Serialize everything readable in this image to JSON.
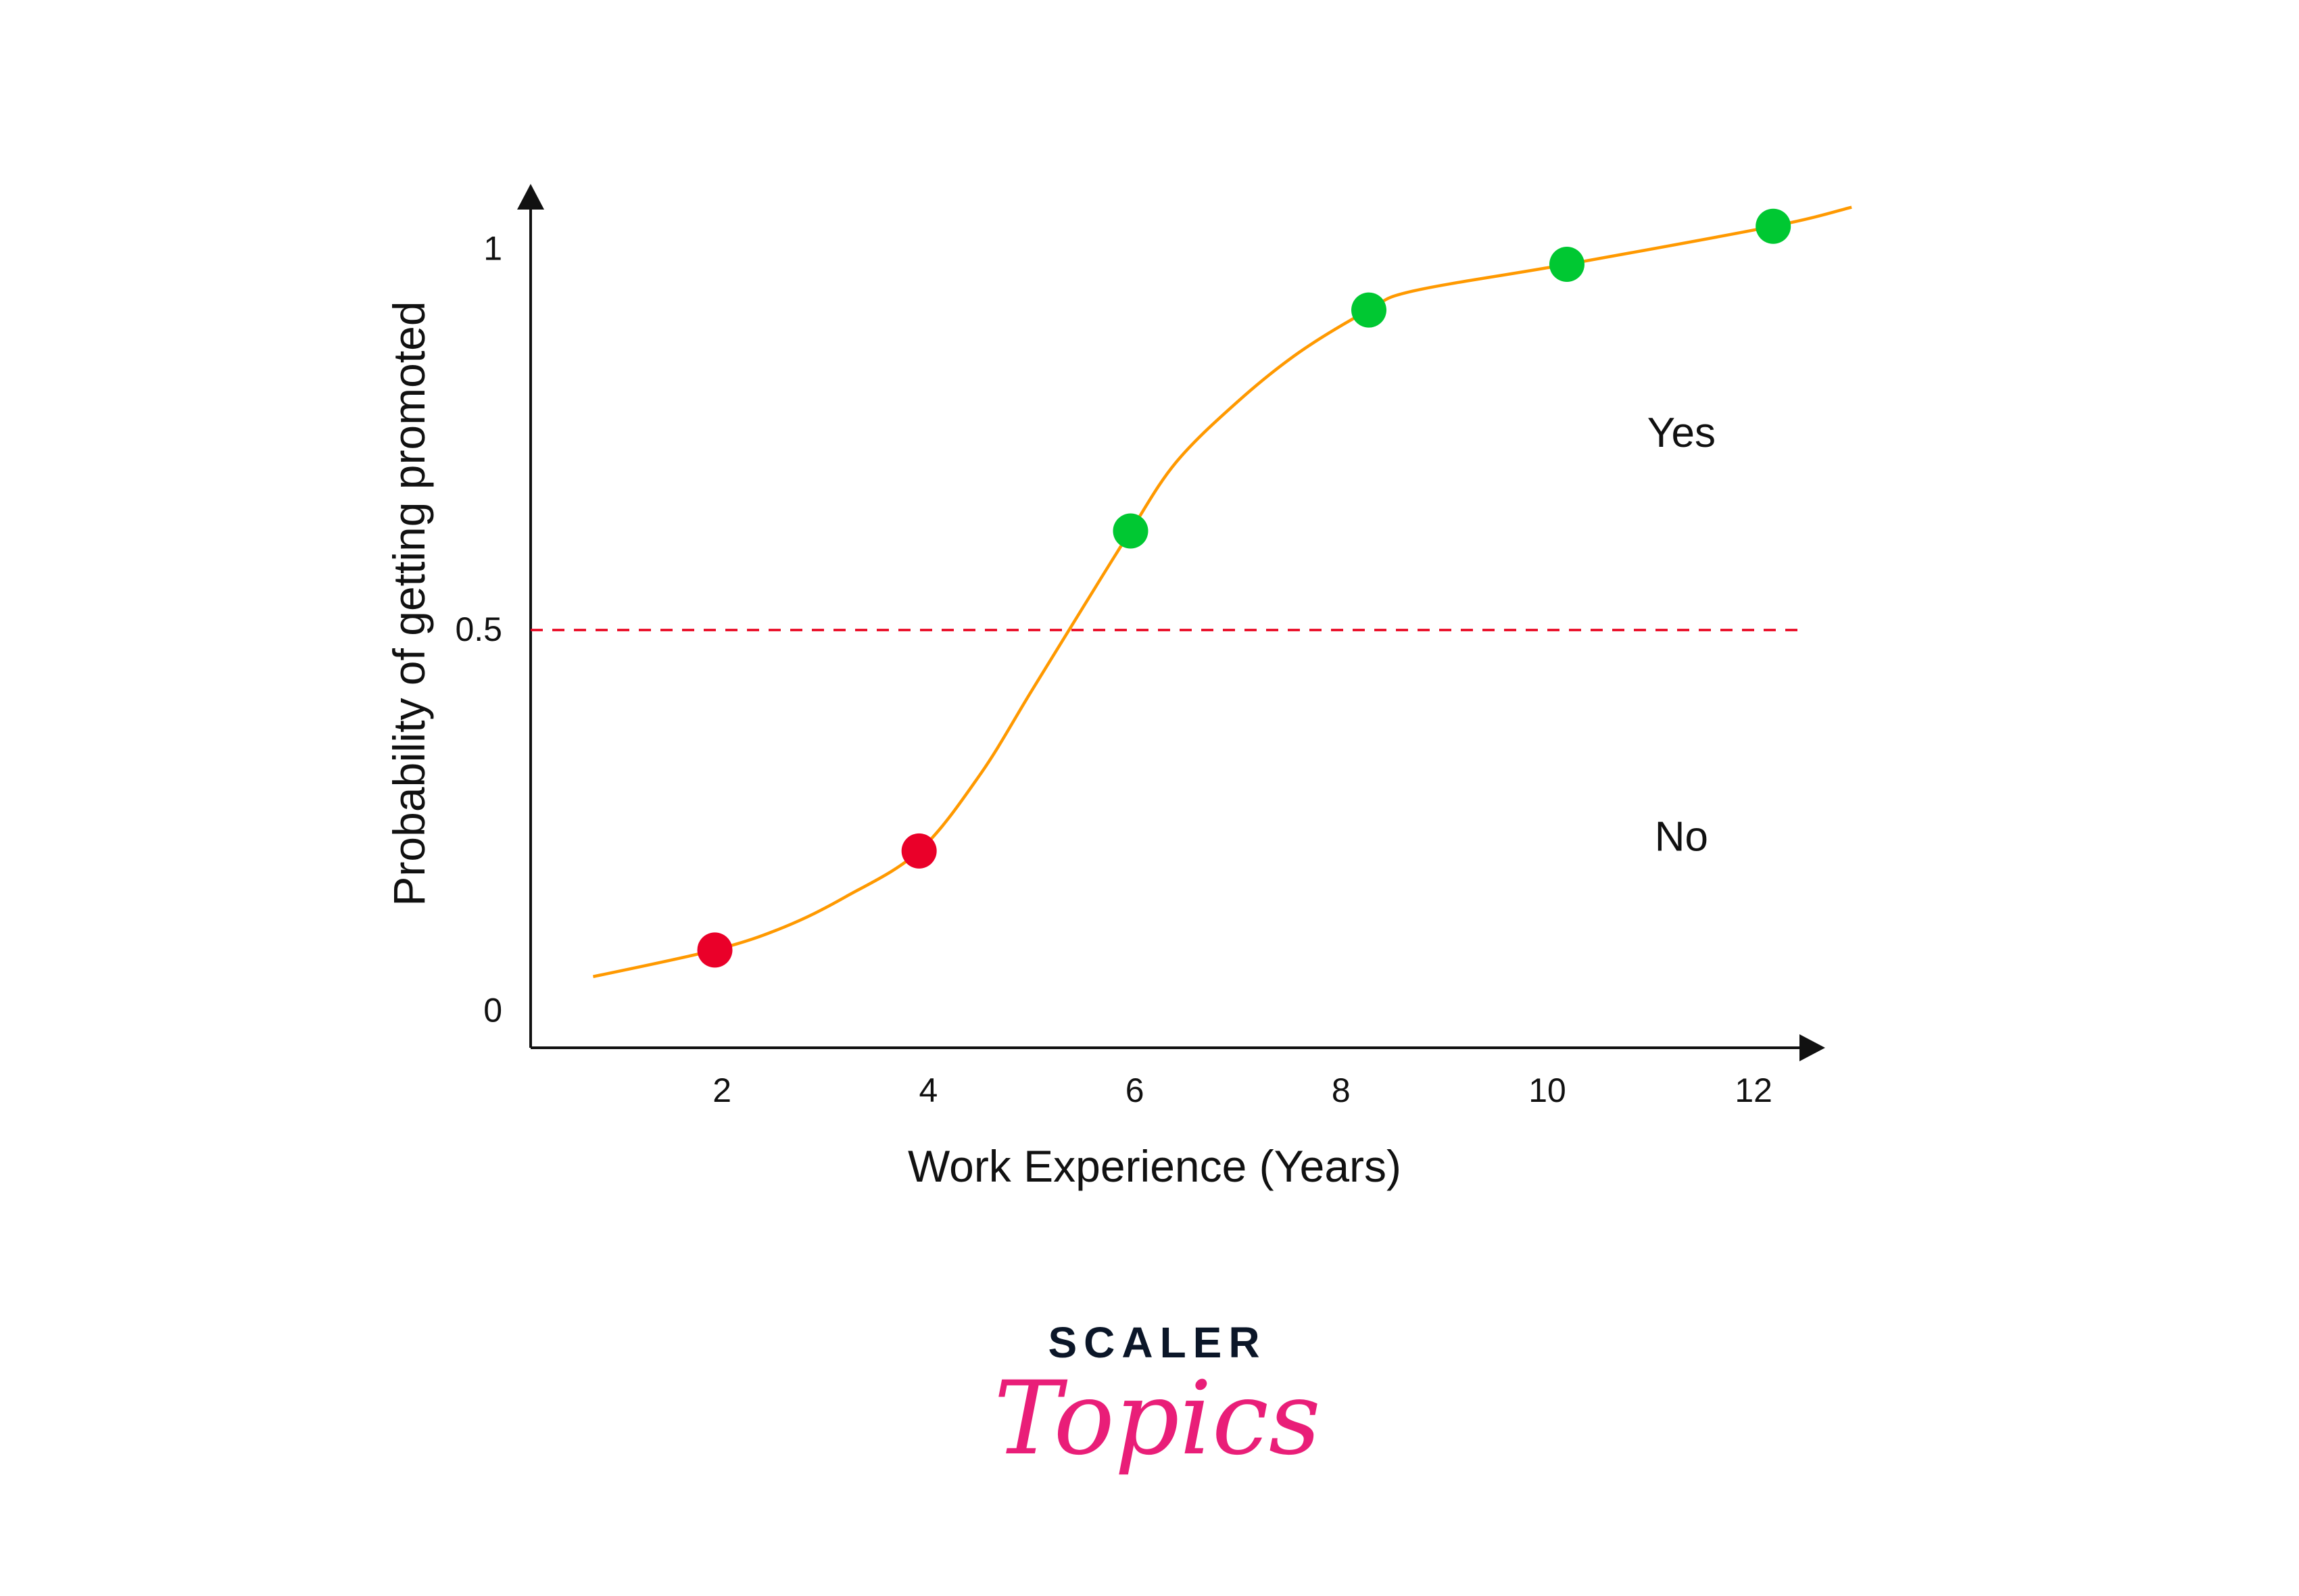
{
  "chart_data": {
    "type": "scatter",
    "title": "",
    "xlabel": "Work Experience (Years)",
    "ylabel": "Probability of getting promoted",
    "xlim": [
      0,
      13
    ],
    "ylim": [
      0,
      1.1
    ],
    "x_ticks": [
      2,
      4,
      6,
      8,
      10,
      12
    ],
    "x_tick_labels": [
      "2",
      "4",
      "6",
      "8",
      "10",
      "12"
    ],
    "y_ticks": [
      0,
      0.5,
      1
    ],
    "y_tick_labels": [
      "0",
      "0.5",
      "1"
    ],
    "grid": false,
    "threshold": {
      "value": 0.5,
      "color": "#e8001c",
      "style": "dashed"
    },
    "points": [
      {
        "x": 1.93,
        "y": 0.08,
        "class": "No",
        "color": "#ea0029"
      },
      {
        "x": 3.91,
        "y": 0.21,
        "class": "No",
        "color": "#ea0029"
      },
      {
        "x": 5.96,
        "y": 0.63,
        "class": "Yes",
        "color": "#00c832"
      },
      {
        "x": 8.27,
        "y": 0.92,
        "class": "Yes",
        "color": "#00c832"
      },
      {
        "x": 10.19,
        "y": 0.98,
        "class": "Yes",
        "color": "#00c832"
      },
      {
        "x": 12.19,
        "y": 1.03,
        "class": "Yes",
        "color": "#00c832"
      }
    ],
    "curve": {
      "name": "sigmoid fit",
      "color": "#ff9900",
      "x": [
        0.75,
        1.93,
        2.6,
        3.2,
        3.91,
        4.5,
        5.0,
        5.5,
        5.96,
        6.4,
        7.0,
        7.6,
        8.27,
        8.7,
        10.19,
        12.19,
        12.95
      ],
      "y": [
        0.045,
        0.08,
        0.11,
        0.15,
        0.21,
        0.31,
        0.42,
        0.53,
        0.63,
        0.72,
        0.8,
        0.865,
        0.92,
        0.945,
        0.98,
        1.03,
        1.055
      ]
    },
    "annotations": [
      {
        "text": "Yes",
        "x": 11.3,
        "y": 0.76
      },
      {
        "text": "No",
        "x": 11.3,
        "y": 0.23
      }
    ]
  },
  "logo": {
    "top": "SCALER",
    "bottom": "Topics"
  }
}
